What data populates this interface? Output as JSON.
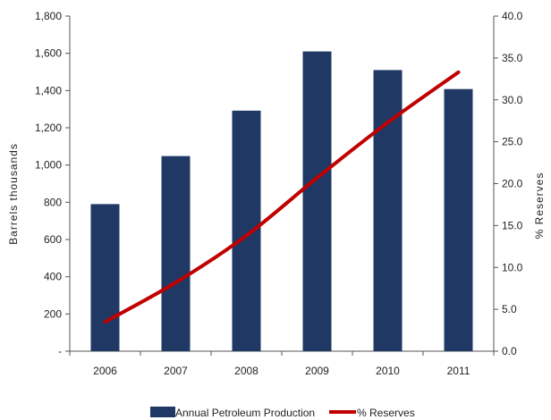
{
  "chart_data": {
    "type": "bar",
    "categories": [
      "2006",
      "2007",
      "2008",
      "2009",
      "2010",
      "2011"
    ],
    "series": [
      {
        "name": "Annual Petroleum Production",
        "kind": "bar",
        "axis": "left",
        "values": [
          790,
          1048,
          1292,
          1610,
          1510,
          1408
        ],
        "color": "#1f3864"
      },
      {
        "name": "% Reserves",
        "kind": "line",
        "axis": "right",
        "values": [
          3.5,
          8.2,
          13.8,
          20.7,
          27.3,
          33.3
        ],
        "color": "#c00000"
      }
    ],
    "y_left": {
      "label": "Barrels thousands",
      "ylim": [
        0,
        1800
      ],
      "ticks": [
        "-",
        "200",
        "400",
        "600",
        "800",
        "1,000",
        "1,200",
        "1,400",
        "1,600",
        "1,800"
      ]
    },
    "y_right": {
      "label": "% Reserves",
      "ylim": [
        0,
        40
      ],
      "ticks": [
        "0.0",
        "5.0",
        "10.0",
        "15.0",
        "20.0",
        "25.0",
        "30.0",
        "35.0",
        "40.0"
      ]
    },
    "legend_position": "bottom",
    "grid": false
  }
}
